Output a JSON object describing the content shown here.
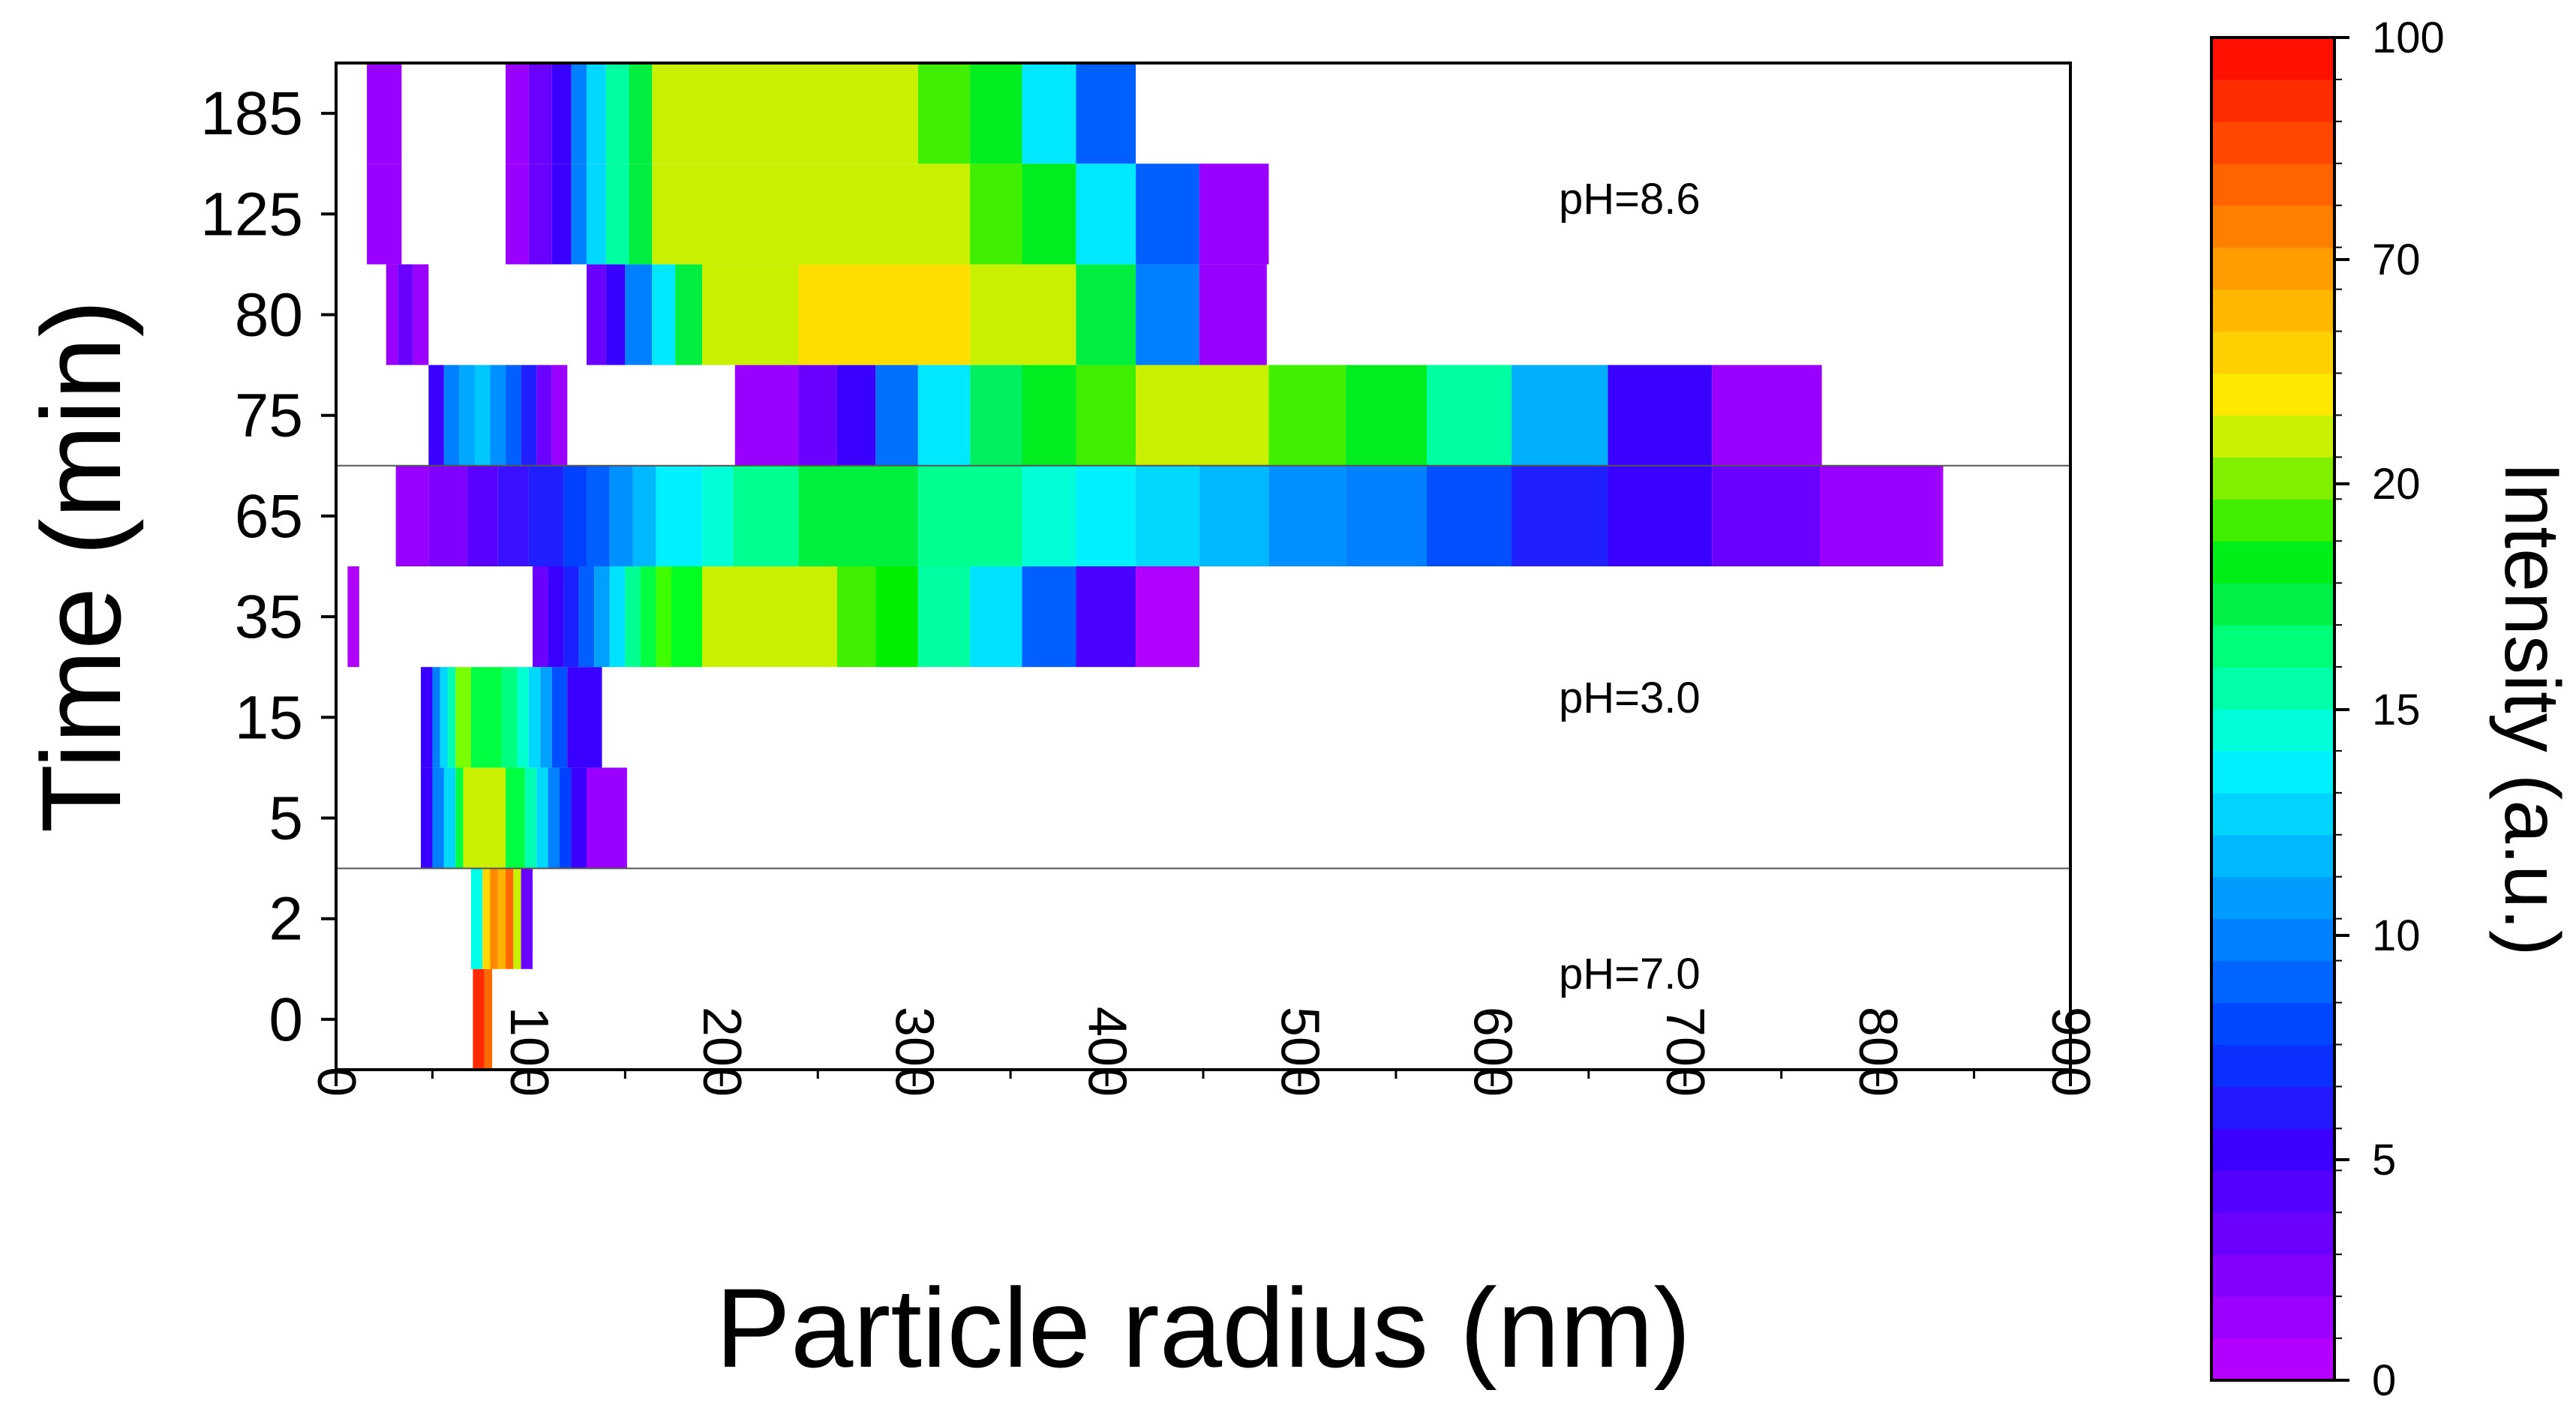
{
  "chart_data": {
    "type": "heatmap",
    "xlabel": "Particle radius (nm)",
    "ylabel": "Time (min)",
    "xlim": [
      0,
      900
    ],
    "x_ticks": [
      "0",
      "100",
      "200",
      "300",
      "400",
      "500",
      "600",
      "700",
      "800",
      "900"
    ],
    "y_categories": [
      "0",
      "2",
      "5",
      "15",
      "35",
      "65",
      "75",
      "80",
      "125",
      "185"
    ],
    "colorbar": {
      "label": "Intensity (a.u.)",
      "range": [
        0,
        100
      ],
      "tick_labels": [
        "0",
        "5",
        "10",
        "15",
        "20",
        "70",
        "100"
      ],
      "tick_values": [
        0,
        5,
        10,
        15,
        20,
        70,
        100
      ]
    },
    "annotations": [
      "pH=8.6",
      "pH=3.0",
      "pH=7.0"
    ],
    "separators_between": [
      [
        "2",
        "5"
      ],
      [
        "65",
        "75"
      ]
    ],
    "rows": [
      {
        "time": "0",
        "segments": [
          [
            71,
            77,
            "#ff2a00"
          ],
          [
            77,
            81,
            "#ff6a00"
          ]
        ]
      },
      {
        "time": "2",
        "segments": [
          [
            70,
            76,
            "#00ffe6"
          ],
          [
            76,
            80,
            "#ffd800"
          ],
          [
            80,
            84,
            "#ff8a00"
          ],
          [
            84,
            88,
            "#ffb000"
          ],
          [
            88,
            92,
            "#ff6a00"
          ],
          [
            92,
            96,
            "#c8f000"
          ],
          [
            96,
            102,
            "#6a00ff"
          ]
        ]
      },
      {
        "time": "5",
        "segments": [
          [
            44,
            50,
            "#3a00ff"
          ],
          [
            50,
            56,
            "#0080ff"
          ],
          [
            56,
            62,
            "#00d8ff"
          ],
          [
            62,
            66,
            "#00ff40"
          ],
          [
            66,
            88,
            "#c8f000"
          ],
          [
            88,
            98,
            "#00ff40"
          ],
          [
            98,
            104,
            "#00ffb0"
          ],
          [
            104,
            110,
            "#00d8ff"
          ],
          [
            110,
            116,
            "#0080ff"
          ],
          [
            116,
            122,
            "#0040ff"
          ],
          [
            122,
            130,
            "#3a00ff"
          ],
          [
            130,
            151,
            "#9a00ff"
          ]
        ]
      },
      {
        "time": "15",
        "segments": [
          [
            44,
            50,
            "#3a00ff"
          ],
          [
            50,
            54,
            "#0080ff"
          ],
          [
            54,
            58,
            "#00d8ff"
          ],
          [
            58,
            62,
            "#00ffb0"
          ],
          [
            62,
            70,
            "#7aff00"
          ],
          [
            70,
            86,
            "#00ff40"
          ],
          [
            86,
            94,
            "#00ff80"
          ],
          [
            94,
            100,
            "#00ffd0"
          ],
          [
            100,
            106,
            "#00d8ff"
          ],
          [
            106,
            112,
            "#00a0ff"
          ],
          [
            112,
            120,
            "#0050ff"
          ],
          [
            120,
            138,
            "#3a00ff"
          ]
        ]
      },
      {
        "time": "35",
        "segments": [
          [
            6,
            12,
            "#b000ff"
          ],
          [
            102,
            110,
            "#6a00ff"
          ],
          [
            110,
            118,
            "#3a00ff"
          ],
          [
            118,
            126,
            "#1a20ff"
          ],
          [
            126,
            134,
            "#0060ff"
          ],
          [
            134,
            142,
            "#00a0ff"
          ],
          [
            142,
            150,
            "#00e0ff"
          ],
          [
            150,
            158,
            "#00ff90"
          ],
          [
            158,
            166,
            "#00ff40"
          ],
          [
            166,
            174,
            "#40ff00"
          ],
          [
            174,
            190,
            "#00ff20"
          ],
          [
            190,
            260,
            "#c8f000"
          ],
          [
            260,
            280,
            "#40f000"
          ],
          [
            280,
            302,
            "#00ee00"
          ],
          [
            302,
            329,
            "#00ffa0"
          ],
          [
            329,
            356,
            "#00e0ff"
          ],
          [
            356,
            384,
            "#0060ff"
          ],
          [
            384,
            415,
            "#4a00ff"
          ],
          [
            415,
            448,
            "#b000ff"
          ]
        ]
      },
      {
        "time": "65",
        "segments": [
          [
            31,
            48,
            "#9a00ff"
          ],
          [
            48,
            68,
            "#8000ff"
          ],
          [
            68,
            84,
            "#5a00ff"
          ],
          [
            84,
            100,
            "#3a10ff"
          ],
          [
            100,
            118,
            "#2020ff"
          ],
          [
            118,
            130,
            "#0040ff"
          ],
          [
            130,
            142,
            "#0060ff"
          ],
          [
            142,
            154,
            "#0090ff"
          ],
          [
            154,
            166,
            "#00b8ff"
          ],
          [
            166,
            190,
            "#00f0ff"
          ],
          [
            190,
            206,
            "#00ffd8"
          ],
          [
            206,
            240,
            "#00ff90"
          ],
          [
            240,
            302,
            "#00f040"
          ],
          [
            302,
            356,
            "#00ff90"
          ],
          [
            356,
            384,
            "#00ffd8"
          ],
          [
            384,
            415,
            "#00f0ff"
          ],
          [
            415,
            448,
            "#00d8ff"
          ],
          [
            448,
            484,
            "#00b8ff"
          ],
          [
            484,
            524,
            "#0090ff"
          ],
          [
            524,
            566,
            "#0080ff"
          ],
          [
            566,
            610,
            "#0050ff"
          ],
          [
            610,
            660,
            "#2020ff"
          ],
          [
            660,
            714,
            "#3a00ff"
          ],
          [
            714,
            770,
            "#6a00ff"
          ],
          [
            770,
            833,
            "#9a00ff"
          ],
          [
            833,
            834,
            "#b000ff"
          ]
        ]
      },
      {
        "time": "75",
        "segments": [
          [
            48,
            56,
            "#3a00ff"
          ],
          [
            56,
            64,
            "#0080ff"
          ],
          [
            64,
            72,
            "#00a8ff"
          ],
          [
            72,
            80,
            "#00c8ff"
          ],
          [
            80,
            88,
            "#0090ff"
          ],
          [
            88,
            96,
            "#0060ff"
          ],
          [
            96,
            104,
            "#2020ff"
          ],
          [
            104,
            112,
            "#6a00ff"
          ],
          [
            112,
            120,
            "#9a00ff"
          ],
          [
            207,
            240,
            "#9a00ff"
          ],
          [
            240,
            260,
            "#6a00ff"
          ],
          [
            260,
            280,
            "#3a00ff"
          ],
          [
            280,
            302,
            "#0070ff"
          ],
          [
            302,
            329,
            "#00e8ff"
          ],
          [
            329,
            356,
            "#00f060"
          ],
          [
            356,
            384,
            "#00ee20"
          ],
          [
            384,
            415,
            "#40ee00"
          ],
          [
            415,
            484,
            "#c8f000"
          ],
          [
            484,
            524,
            "#40f000"
          ],
          [
            524,
            566,
            "#00ee20"
          ],
          [
            566,
            610,
            "#00ffa0"
          ],
          [
            610,
            660,
            "#00b0ff"
          ],
          [
            660,
            714,
            "#3a00ff"
          ],
          [
            714,
            771,
            "#9a00ff"
          ]
        ]
      },
      {
        "time": "80",
        "segments": [
          [
            26,
            32,
            "#9a00ff"
          ],
          [
            32,
            40,
            "#6a00ff"
          ],
          [
            40,
            48,
            "#9a00ff"
          ],
          [
            130,
            140,
            "#6a00ff"
          ],
          [
            140,
            150,
            "#3a00ff"
          ],
          [
            150,
            164,
            "#0080ff"
          ],
          [
            164,
            176,
            "#00e8ff"
          ],
          [
            176,
            190,
            "#00ee40"
          ],
          [
            190,
            240,
            "#c8f000"
          ],
          [
            240,
            329,
            "#ffdd00"
          ],
          [
            329,
            384,
            "#c8f000"
          ],
          [
            384,
            415,
            "#00ee40"
          ],
          [
            415,
            448,
            "#0080ff"
          ],
          [
            448,
            483,
            "#9a00ff"
          ]
        ]
      },
      {
        "time": "125",
        "segments": [
          [
            16,
            34,
            "#9a00ff"
          ],
          [
            88,
            100,
            "#9a00ff"
          ],
          [
            100,
            112,
            "#6a00ff"
          ],
          [
            112,
            122,
            "#3a00ff"
          ],
          [
            122,
            130,
            "#0080ff"
          ],
          [
            130,
            140,
            "#00d8ff"
          ],
          [
            140,
            152,
            "#00ffa0"
          ],
          [
            152,
            164,
            "#00ee40"
          ],
          [
            164,
            329,
            "#c8f000"
          ],
          [
            329,
            356,
            "#40ee00"
          ],
          [
            356,
            384,
            "#00ee20"
          ],
          [
            384,
            415,
            "#00e8ff"
          ],
          [
            415,
            448,
            "#0060ff"
          ],
          [
            448,
            484,
            "#9a00ff"
          ]
        ]
      },
      {
        "time": "185",
        "segments": [
          [
            16,
            34,
            "#9a00ff"
          ],
          [
            88,
            100,
            "#9a00ff"
          ],
          [
            100,
            112,
            "#6a00ff"
          ],
          [
            112,
            122,
            "#3a00ff"
          ],
          [
            122,
            130,
            "#0080ff"
          ],
          [
            130,
            140,
            "#00d8ff"
          ],
          [
            140,
            152,
            "#00ffa0"
          ],
          [
            152,
            164,
            "#00ee40"
          ],
          [
            164,
            302,
            "#c8f000"
          ],
          [
            302,
            329,
            "#40ee00"
          ],
          [
            329,
            356,
            "#00ee20"
          ],
          [
            356,
            384,
            "#00e8ff"
          ],
          [
            384,
            415,
            "#0060ff"
          ]
        ]
      }
    ]
  },
  "colorbar_colors": [
    "#b400ff",
    "#9c00ff",
    "#8400ff",
    "#6c00ff",
    "#5400ff",
    "#3c00ff",
    "#2418ff",
    "#0c30ff",
    "#0048ff",
    "#0064ff",
    "#0080ff",
    "#009cff",
    "#00b8ff",
    "#00d4ff",
    "#00f0ff",
    "#00ffd8",
    "#00ffa8",
    "#00ff78",
    "#00f048",
    "#00ee18",
    "#40ee00",
    "#80f000",
    "#c8f000",
    "#ffe800",
    "#ffd000",
    "#ffb800",
    "#ff9c00",
    "#ff8000",
    "#ff6400",
    "#ff4800",
    "#ff2c00",
    "#ff1000"
  ]
}
